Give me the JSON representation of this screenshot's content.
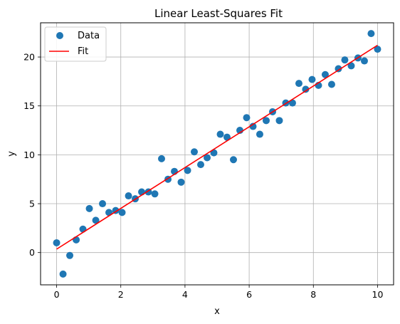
{
  "chart_data": {
    "type": "scatter",
    "title": "Linear Least-Squares Fit",
    "xlabel": "x",
    "ylabel": "y",
    "xlim": [
      -0.5,
      10.5
    ],
    "ylim": [
      -3.3,
      23.5
    ],
    "xticks": [
      0,
      2,
      4,
      6,
      8,
      10
    ],
    "yticks": [
      0,
      5,
      10,
      15,
      20
    ],
    "xtick_labels": [
      "0",
      "2",
      "4",
      "6",
      "8",
      "10"
    ],
    "ytick_labels": [
      "0",
      "5",
      "10",
      "15",
      "20"
    ],
    "grid": true,
    "legend_position": "top-left",
    "legend": [
      {
        "label": "Data",
        "kind": "marker",
        "color": "#1f77b4"
      },
      {
        "label": "Fit",
        "kind": "line",
        "color": "#ff0000"
      }
    ],
    "series": [
      {
        "name": "Data",
        "type": "scatter",
        "color": "#1f77b4",
        "points": [
          [
            0.0,
            1.0
          ],
          [
            0.2,
            -2.2
          ],
          [
            0.41,
            -0.3
          ],
          [
            0.61,
            1.3
          ],
          [
            0.82,
            2.4
          ],
          [
            1.02,
            4.5
          ],
          [
            1.22,
            3.3
          ],
          [
            1.43,
            5.0
          ],
          [
            1.63,
            4.1
          ],
          [
            1.84,
            4.3
          ],
          [
            2.04,
            4.1
          ],
          [
            2.24,
            5.8
          ],
          [
            2.45,
            5.5
          ],
          [
            2.65,
            6.2
          ],
          [
            2.86,
            6.2
          ],
          [
            3.06,
            6.0
          ],
          [
            3.27,
            9.6
          ],
          [
            3.47,
            7.5
          ],
          [
            3.67,
            8.3
          ],
          [
            3.88,
            7.2
          ],
          [
            4.08,
            8.4
          ],
          [
            4.29,
            10.3
          ],
          [
            4.49,
            9.0
          ],
          [
            4.69,
            9.7
          ],
          [
            4.9,
            10.2
          ],
          [
            5.1,
            12.1
          ],
          [
            5.31,
            11.8
          ],
          [
            5.51,
            9.5
          ],
          [
            5.71,
            12.5
          ],
          [
            5.92,
            13.8
          ],
          [
            6.12,
            12.9
          ],
          [
            6.33,
            12.1
          ],
          [
            6.53,
            13.5
          ],
          [
            6.73,
            14.4
          ],
          [
            6.94,
            13.5
          ],
          [
            7.14,
            15.3
          ],
          [
            7.35,
            15.3
          ],
          [
            7.55,
            17.3
          ],
          [
            7.76,
            16.7
          ],
          [
            7.96,
            17.7
          ],
          [
            8.16,
            17.1
          ],
          [
            8.37,
            18.2
          ],
          [
            8.57,
            17.2
          ],
          [
            8.78,
            18.8
          ],
          [
            8.98,
            19.7
          ],
          [
            9.18,
            19.1
          ],
          [
            9.39,
            19.9
          ],
          [
            9.59,
            19.6
          ],
          [
            9.8,
            22.4
          ],
          [
            10.0,
            20.8
          ]
        ]
      },
      {
        "name": "Fit",
        "type": "line",
        "color": "#ff0000",
        "points": [
          [
            0,
            0.35
          ],
          [
            10,
            21.2
          ]
        ]
      }
    ]
  }
}
